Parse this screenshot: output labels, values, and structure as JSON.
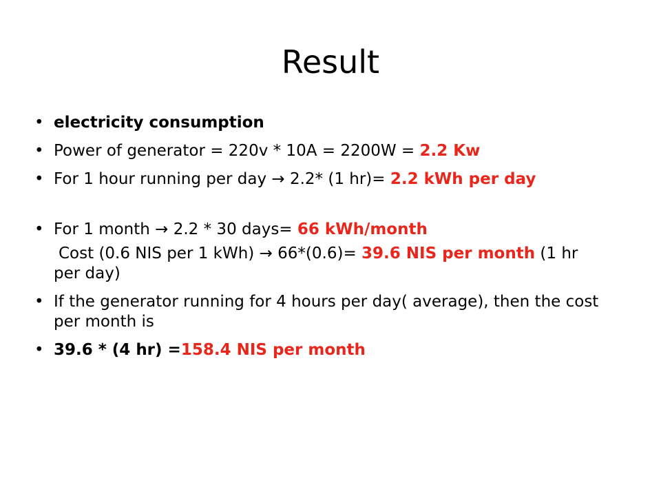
{
  "slide": {
    "title": "Result",
    "bullet_char": "•",
    "p1": {
      "text": "electricity consumption"
    },
    "p2": {
      "text": "Power of generator = 220v * 10A = 2200W = ",
      "highlight": "2.2 Kw"
    },
    "p3": {
      "text": "For 1 hour running per day → 2.2* (1 hr)= ",
      "highlight": "2.2 kWh per day"
    },
    "p4": {
      "text": "For 1 month → 2.2 * 30 days= ",
      "highlight": "66 kWh/month"
    },
    "p5": {
      "text": "Cost (0.6 NIS per 1 kWh) → 66*(0.6)= ",
      "highlight": "39.6 NIS per month",
      "tail": " (1 hr per day)"
    },
    "p6": {
      "text": "If the generator running for 4 hours per day( average), then the cost per month is"
    },
    "p7": {
      "text": "39.6 * (4 hr) =",
      "highlight": "158.4 NIS per month"
    }
  },
  "colors": {
    "text": "#000000",
    "highlight": "#e8261b",
    "background": "#ffffff"
  }
}
